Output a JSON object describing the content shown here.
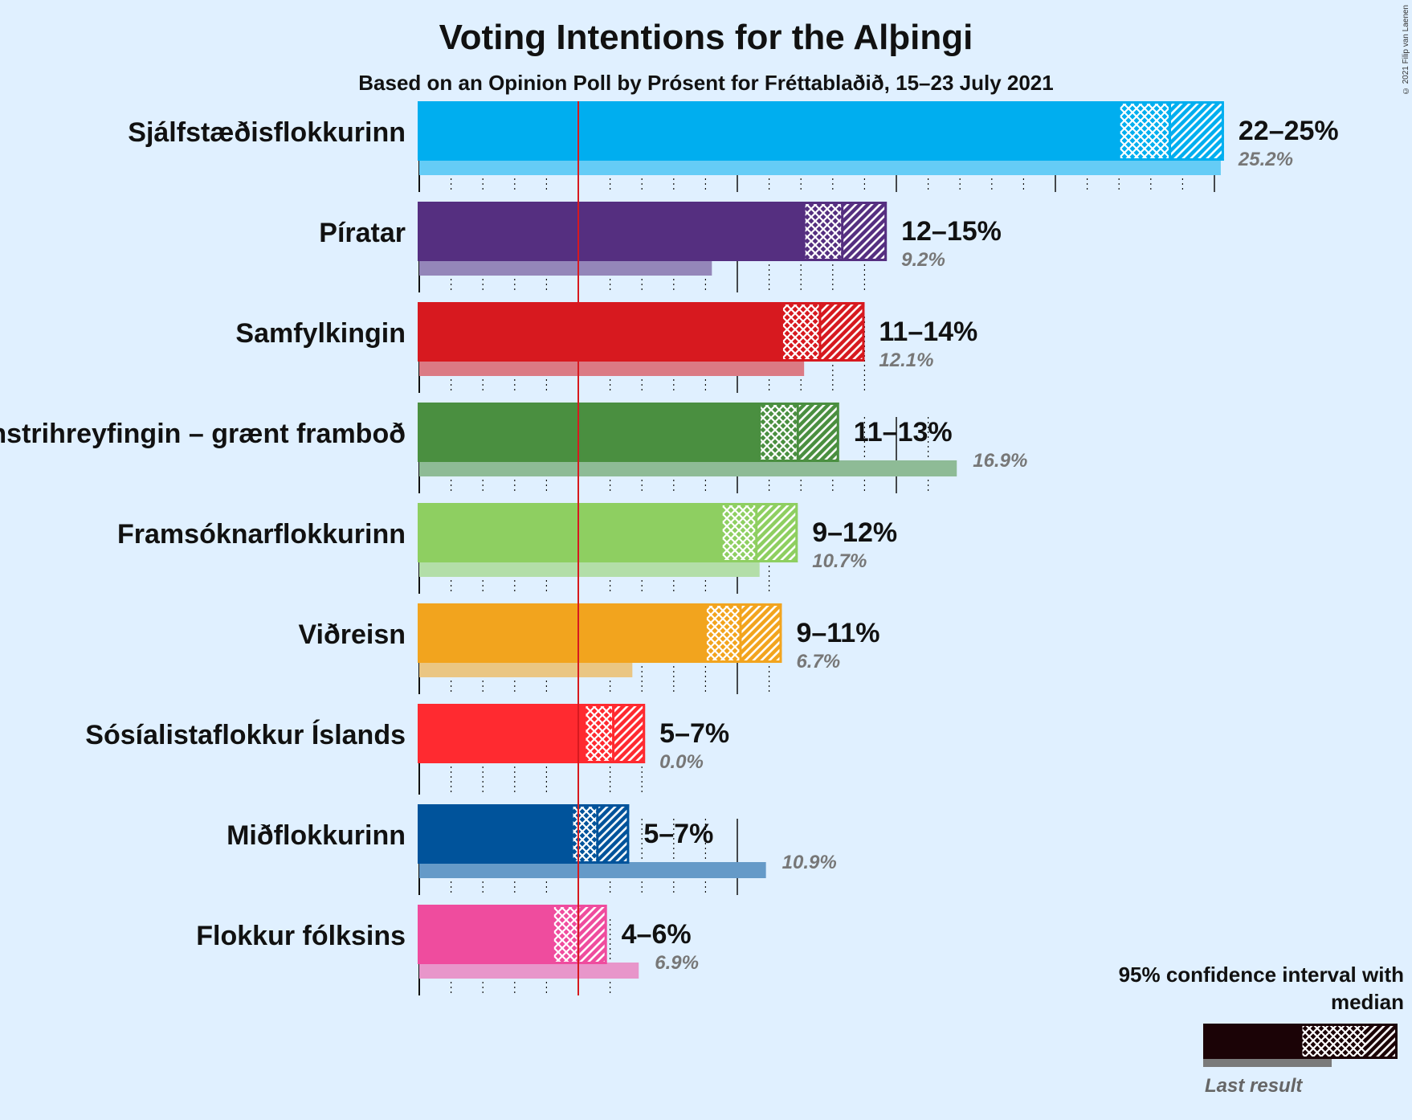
{
  "title": "Voting Intentions for the Alþingi",
  "subtitle": "Based on an Opinion Poll by Prósent for Fréttablaðið, 15–23 July 2021",
  "copyright": "© 2021 Filip van Laenen",
  "legend": {
    "title": "95% confidence interval with median",
    "last_result": "Last result"
  },
  "chart_data": {
    "type": "bar",
    "orientation": "horizontal",
    "title": "Voting Intentions for the Alþingi",
    "subtitle": "Based on an Opinion Poll by Prósent for Fréttablaðið, 15–23 July 2021",
    "x_unit": "%",
    "xlim": [
      0,
      26
    ],
    "threshold": 5,
    "grid": true,
    "legend_position": "bottom-right",
    "parties": [
      {
        "name": "Sjálfstæðisflokkurinn",
        "color": "#00aeef",
        "low": 22.0,
        "median": 23.6,
        "high": 25.3,
        "range_label": "22–25%",
        "last_result": 25.2,
        "last_label": "25.2%"
      },
      {
        "name": "Píratar",
        "color": "#552f80",
        "low": 12.1,
        "median": 13.3,
        "high": 14.7,
        "range_label": "12–15%",
        "last_result": 9.2,
        "last_label": "9.2%"
      },
      {
        "name": "Samfylkingin",
        "color": "#d7191f",
        "low": 11.4,
        "median": 12.6,
        "high": 14.0,
        "range_label": "11–14%",
        "last_result": 12.1,
        "last_label": "12.1%"
      },
      {
        "name": "Vinstrihreyfingin – grænt framboð",
        "color": "#4a8f40",
        "low": 10.7,
        "median": 11.9,
        "high": 13.2,
        "range_label": "11–13%",
        "last_result": 16.9,
        "last_label": "16.9%"
      },
      {
        "name": "Framsóknarflokkurinn",
        "color": "#8ecf61",
        "low": 9.5,
        "median": 10.6,
        "high": 11.9,
        "range_label": "9–12%",
        "last_result": 10.7,
        "last_label": "10.7%"
      },
      {
        "name": "Viðreisn",
        "color": "#f2a41e",
        "low": 9.0,
        "median": 10.1,
        "high": 11.4,
        "range_label": "9–11%",
        "last_result": 6.7,
        "last_label": "6.7%"
      },
      {
        "name": "Sósíalistaflokkur Íslands",
        "color": "#ff2a30",
        "low": 5.2,
        "median": 6.1,
        "high": 7.1,
        "range_label": "5–7%",
        "last_result": 0.0,
        "last_label": "0.0%"
      },
      {
        "name": "Miðflokkurinn",
        "color": "#00539b",
        "low": 4.8,
        "median": 5.6,
        "high": 6.6,
        "range_label": "5–7%",
        "last_result": 10.9,
        "last_label": "10.9%"
      },
      {
        "name": "Flokkur fólksins",
        "color": "#ef4c9e",
        "low": 4.2,
        "median": 5.0,
        "high": 5.9,
        "range_label": "4–6%",
        "last_result": 6.9,
        "last_label": "6.9%"
      }
    ]
  }
}
